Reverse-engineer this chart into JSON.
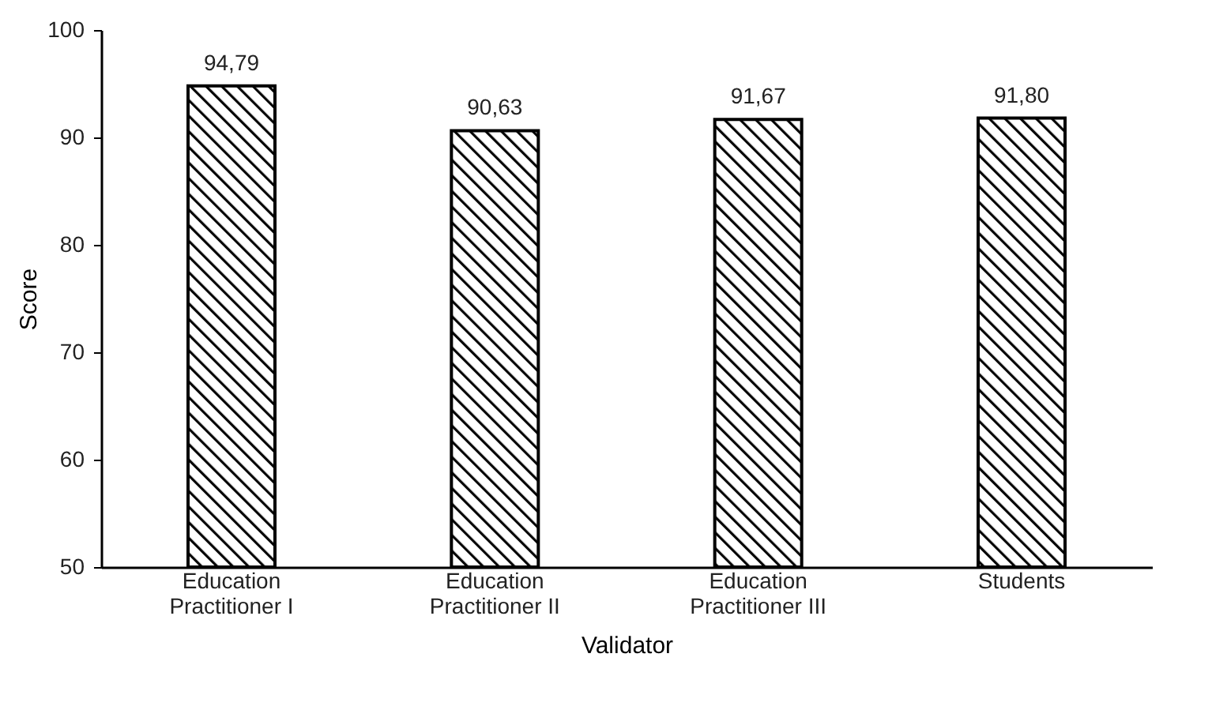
{
  "chart_data": {
    "type": "bar",
    "xlabel": "Validator",
    "ylabel": "Score",
    "categories": [
      "Education Practitioner I",
      "Education Practitioner II",
      "Education Practitioner III",
      "Students"
    ],
    "values": [
      94.79,
      90.63,
      91.67,
      91.8
    ],
    "value_labels": [
      "94,79",
      "90,63",
      "91,67",
      "91,80"
    ],
    "color": "#000000",
    "ylim": [
      50,
      100
    ],
    "yticks": [
      50,
      60,
      70,
      80,
      90,
      100
    ],
    "grid": false
  }
}
